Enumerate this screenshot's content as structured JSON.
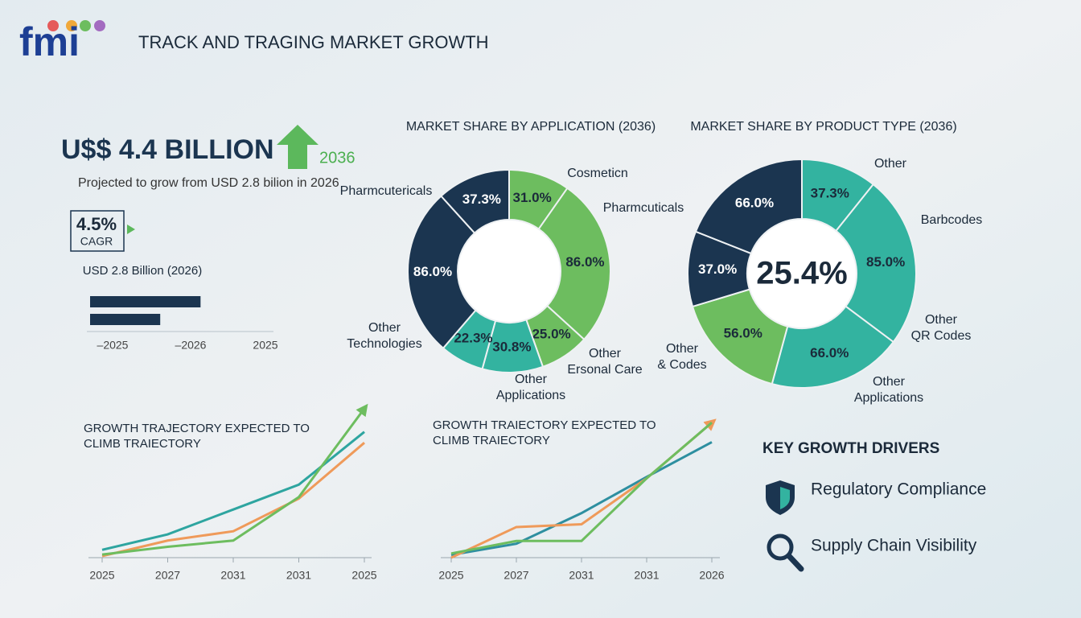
{
  "header": {
    "logo": "fmi",
    "title": "TRACK AND TRAGING MARKET GROWTH"
  },
  "kpi": {
    "value": "U$$ 4.4 BILLION",
    "year": "2036",
    "subtitle": "Projected to grow from USD 2.8 bilion in 2026",
    "cagr": "4.5%",
    "cagr_label": "CAGR"
  },
  "chart_data": [
    {
      "type": "bar",
      "orientation": "horizontal",
      "title": "USD 2.8 Billion (2026)",
      "values": [
        63,
        40
      ],
      "color": "#1b3550",
      "xlim": [
        0,
        100
      ],
      "axis_labels": [
        "–2025",
        "–2026",
        "2025"
      ]
    },
    {
      "type": "donut",
      "title": "MARKET SHARE BY APPLICATION (2036)",
      "values": [
        31.0,
        86.0,
        25.0,
        30.8,
        22.3,
        86.0,
        37.3
      ],
      "value_labels": [
        "31.0%",
        "86.0%",
        "25.0%",
        "30.8%",
        "22.3%",
        "86.0%",
        "37.3%"
      ],
      "colors": [
        "#6dbd5f",
        "#6dbd5f",
        "#6dbd5f",
        "#33b3a0",
        "#33b3a0",
        "#1b3550",
        "#1b3550"
      ],
      "callouts": [
        [
          "Cosmeticn"
        ],
        [
          "Pharmcuticals"
        ],
        [
          "Pharmcutericals"
        ],
        [
          "Other",
          "Technologies"
        ],
        [
          "Other",
          "Applications"
        ],
        [
          "Other",
          "Ersonal Care"
        ]
      ]
    },
    {
      "type": "donut",
      "title": "MARKET SHARE BY PRODUCT TYPE (2036)",
      "center_label": "25.4%",
      "values": [
        37.3,
        85.0,
        66.0,
        56.0,
        37.0,
        66.0
      ],
      "value_labels": [
        "37.3%",
        "85.0%",
        "66.0%",
        "56.0%",
        "37.0%",
        "66.0%"
      ],
      "colors": [
        "#33b3a0",
        "#33b3a0",
        "#33b3a0",
        "#6dbd5f",
        "#1b3550",
        "#1b3550"
      ],
      "callouts": [
        [
          "Other"
        ],
        [
          "Barbcodes"
        ],
        [
          "Other",
          "QR Codes"
        ],
        [
          "Other",
          "Applications"
        ],
        [
          "Other",
          "& Codes"
        ]
      ]
    },
    {
      "type": "line",
      "title": [
        "GROWTH TRAJECTORY EXPECTED TO",
        "CLIMB TRAIECTORY"
      ],
      "categories": [
        "2025",
        "2027",
        "2031",
        "2031",
        "2025"
      ],
      "ylim": [
        0,
        100
      ],
      "series": [
        {
          "color": "#2ea5a0",
          "values": [
            5,
            15,
            31,
            47,
            81
          ]
        },
        {
          "color": "#ef9a5a",
          "values": [
            1,
            11,
            17,
            38,
            74
          ]
        },
        {
          "color": "#6dbd5f",
          "values": [
            2,
            7,
            11,
            39,
            96
          ],
          "arrow": true
        }
      ]
    },
    {
      "type": "line",
      "title": [
        "GROWTH TRAIECTORY EXPECTED TO",
        "CLIMB TRAIECTORY"
      ],
      "categories": [
        "2025",
        "2027",
        "2031",
        "2031",
        "2026"
      ],
      "ylim": [
        0,
        100
      ],
      "series": [
        {
          "color": "#2e8fa0",
          "values": [
            2,
            10,
            32,
            58,
            83
          ]
        },
        {
          "color": "#ef9a5a",
          "values": [
            0,
            22,
            24,
            57,
            97
          ],
          "arrow": true
        },
        {
          "color": "#6dbd5f",
          "values": [
            3,
            12,
            12,
            57,
            97
          ]
        }
      ]
    }
  ],
  "drivers": {
    "title": "KEY GROWTH DRIVERS",
    "items": [
      "Regulatory Compliance",
      "Supply Chain Visibility"
    ]
  }
}
